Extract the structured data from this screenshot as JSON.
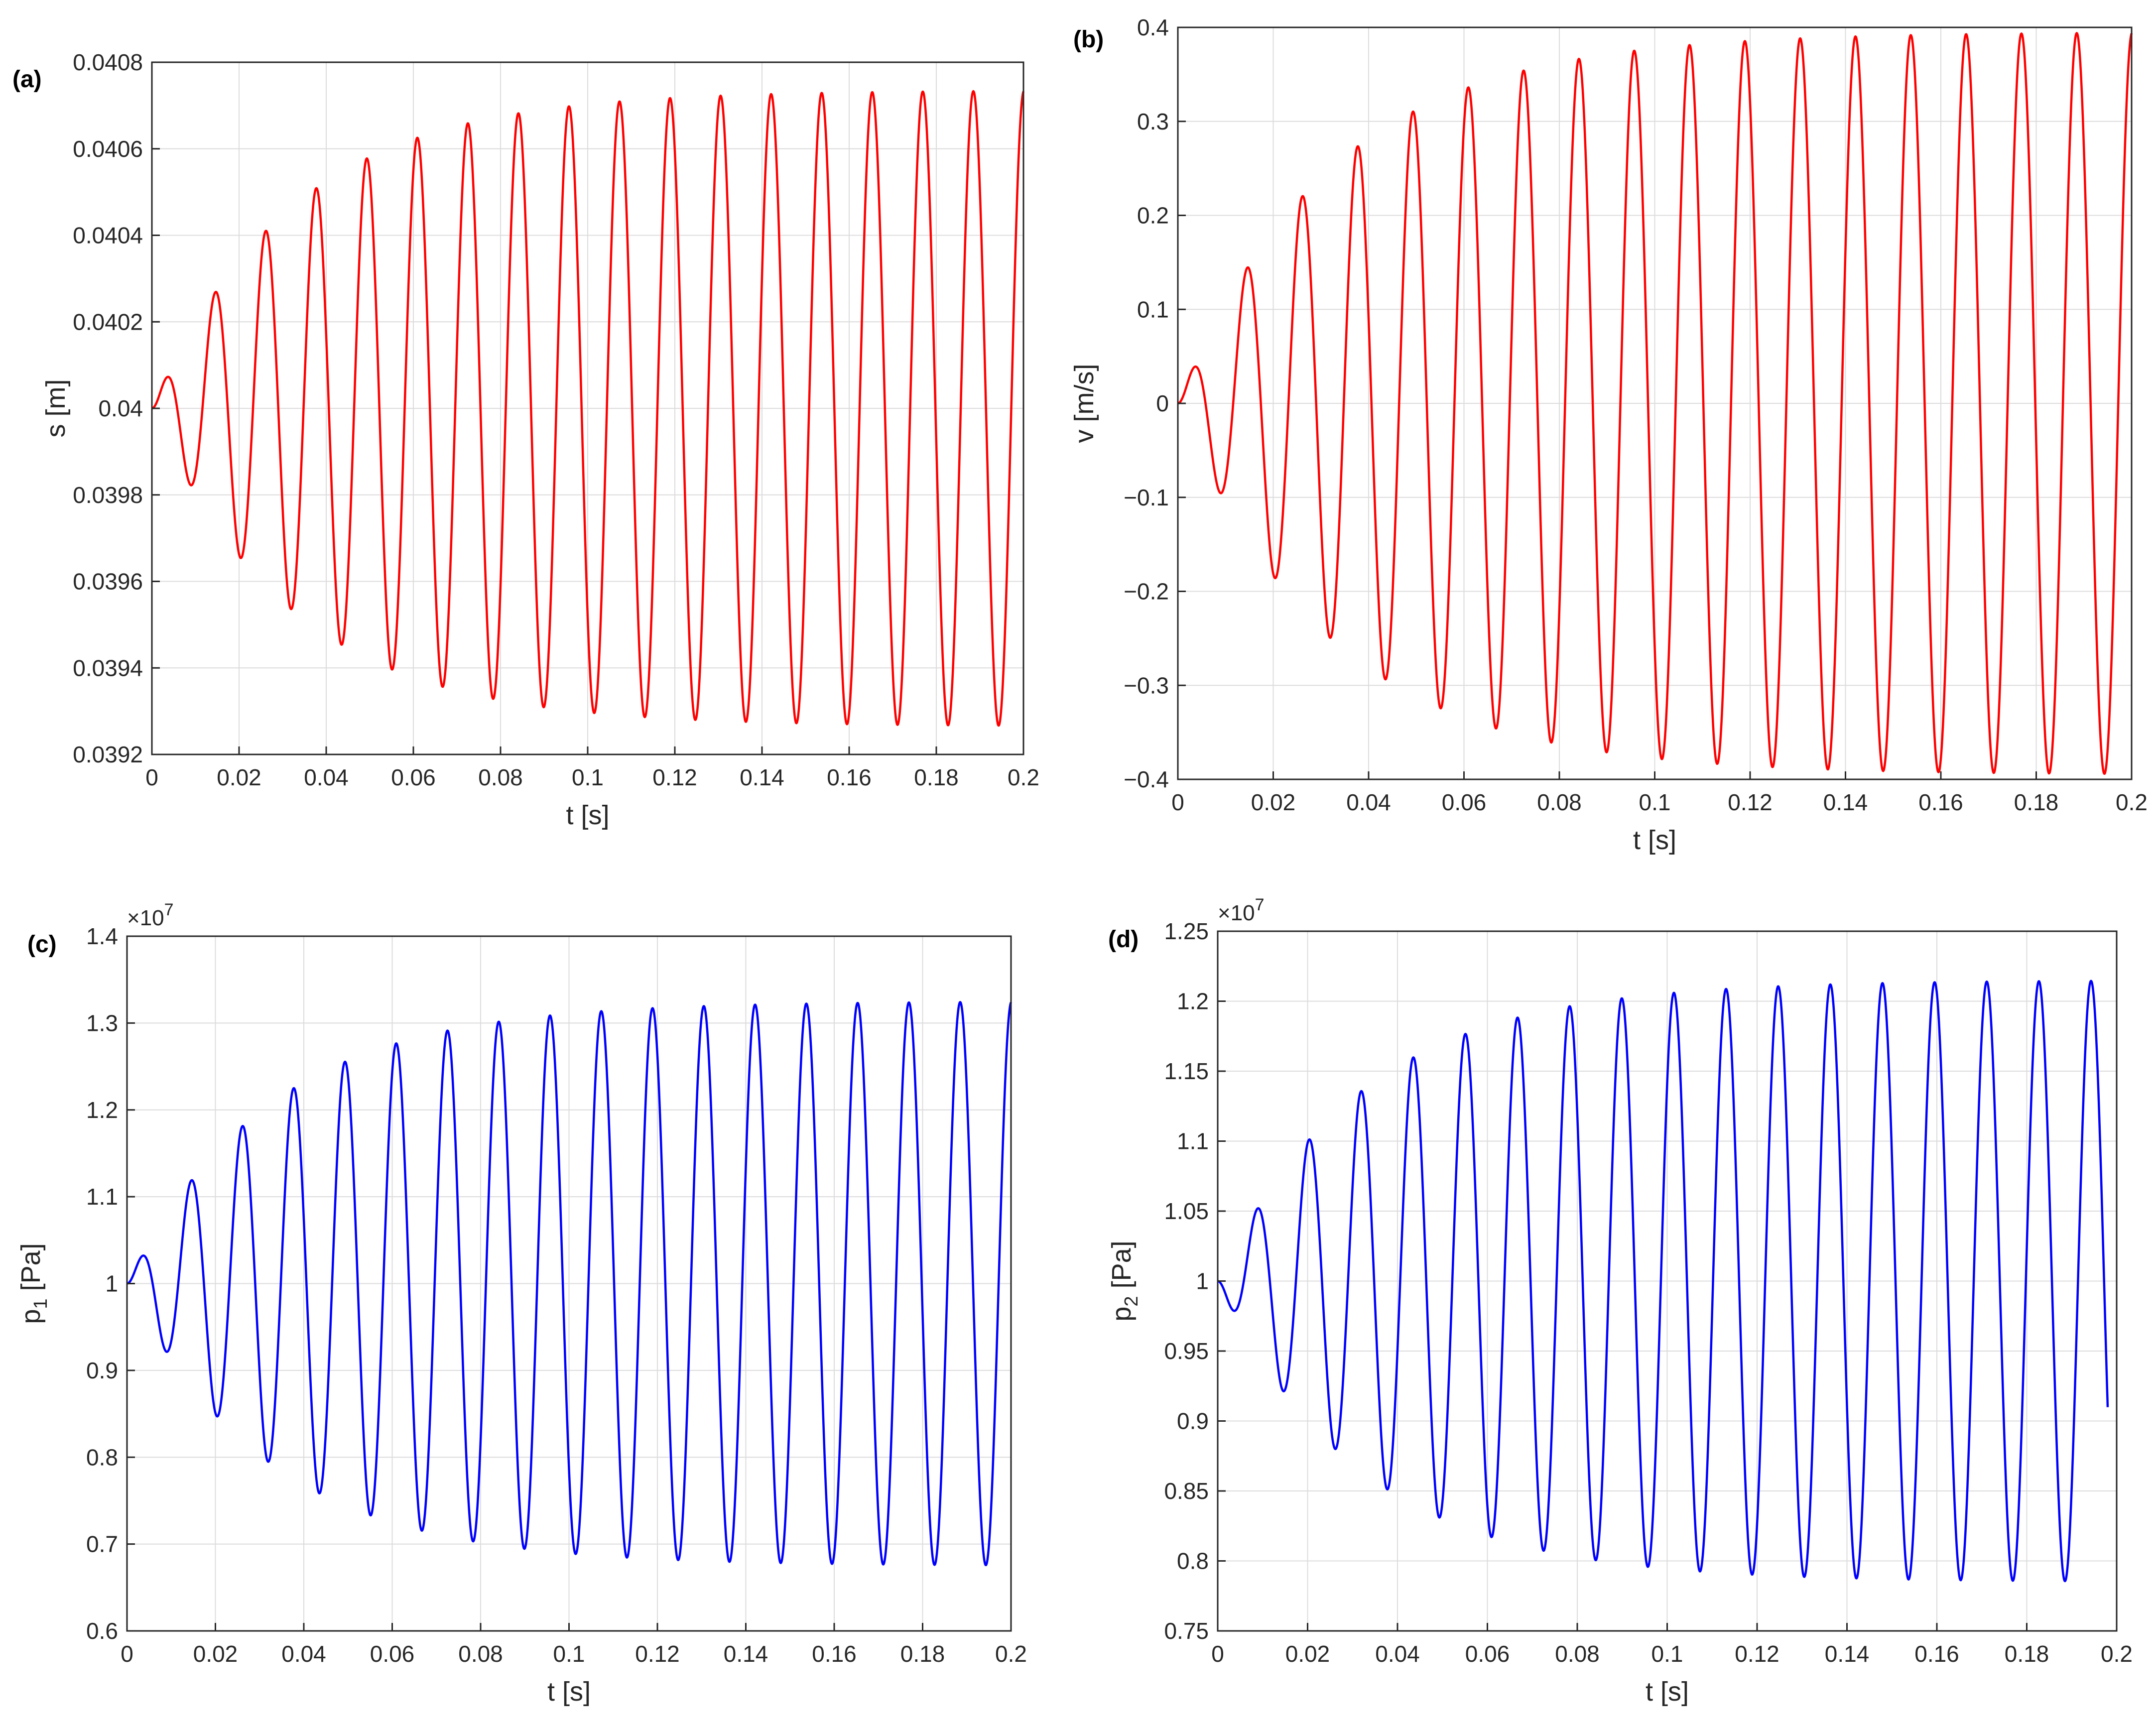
{
  "chart_data": [
    {
      "type": "line",
      "panel": "(a)",
      "xlabel": "t [s]",
      "ylabel": "s [m]",
      "ylabel_sub": "",
      "exponent": "",
      "color": "#ff0000",
      "xlim": [
        0,
        0.2
      ],
      "ylim": [
        0.0392,
        0.0408
      ],
      "xticks": [
        0,
        0.02,
        0.04,
        0.06,
        0.08,
        0.1,
        0.12,
        0.14,
        0.16,
        0.18,
        0.2
      ],
      "xtick_labels": [
        "0",
        "0.02",
        "0.04",
        "0.06",
        "0.08",
        "0.1",
        "0.12",
        "0.14",
        "0.16",
        "0.18",
        "0.2"
      ],
      "yticks": [
        0.0392,
        0.0394,
        0.0396,
        0.0398,
        0.04,
        0.0402,
        0.0404,
        0.0406,
        0.0408
      ],
      "ytick_labels": [
        "0.0392",
        "0.0394",
        "0.0396",
        "0.0398",
        "0.04",
        "0.0402",
        "0.0404",
        "0.0406",
        "0.0408"
      ],
      "series": [
        {
          "name": "s",
          "phase": "sin",
          "baseline": 0.04,
          "period": 0.0116,
          "peak_amplitude": 0.000735,
          "time_constant": 0.032,
          "end_time": 0.2
        }
      ]
    },
    {
      "type": "line",
      "panel": "(b)",
      "xlabel": "t [s]",
      "ylabel": "v [m/s]",
      "ylabel_sub": "",
      "exponent": "",
      "color": "#ff0000",
      "xlim": [
        0,
        0.2
      ],
      "ylim": [
        -0.4,
        0.4
      ],
      "xticks": [
        0,
        0.02,
        0.04,
        0.06,
        0.08,
        0.1,
        0.12,
        0.14,
        0.16,
        0.18,
        0.2
      ],
      "xtick_labels": [
        "0",
        "0.02",
        "0.04",
        "0.06",
        "0.08",
        "0.1",
        "0.12",
        "0.14",
        "0.16",
        "0.18",
        "0.2"
      ],
      "yticks": [
        -0.4,
        -0.3,
        -0.2,
        -0.1,
        0,
        0.1,
        0.2,
        0.3,
        0.4
      ],
      "ytick_labels": [
        "−0.4",
        "−0.3",
        "−0.2",
        "−0.1",
        "0",
        "0.1",
        "0.2",
        "0.3",
        "0.4"
      ],
      "series": [
        {
          "name": "v",
          "phase": "sin",
          "baseline": 0,
          "period": 0.0116,
          "peak_amplitude": 0.395,
          "time_constant": 0.032,
          "end_time": 0.2
        }
      ]
    },
    {
      "type": "line",
      "panel": "(c)",
      "xlabel": "t [s]",
      "ylabel": "p",
      "ylabel_sub": "1",
      "ylabel_unit": " [Pa]",
      "exponent": "×10",
      "exponent_power": "7",
      "color": "#0000ff",
      "xlim": [
        0,
        0.2
      ],
      "ylim": [
        0.6,
        1.4
      ],
      "xticks": [
        0,
        0.02,
        0.04,
        0.06,
        0.08,
        0.1,
        0.12,
        0.14,
        0.16,
        0.18,
        0.2
      ],
      "xtick_labels": [
        "0",
        "0.02",
        "0.04",
        "0.06",
        "0.08",
        "0.1",
        "0.12",
        "0.14",
        "0.16",
        "0.18",
        "0.2"
      ],
      "yticks": [
        0.6,
        0.7,
        0.8,
        0.9,
        1.0,
        1.1,
        1.2,
        1.3,
        1.4
      ],
      "ytick_labels": [
        "0.6",
        "0.7",
        "0.8",
        "0.9",
        "1",
        "1.1",
        "1.2",
        "1.3",
        "1.4"
      ],
      "series": [
        {
          "name": "p1",
          "phase": "sin",
          "baseline": 1.0,
          "period": 0.0116,
          "peak_amplitude": 0.325,
          "time_constant": 0.032,
          "end_time": 0.2
        }
      ]
    },
    {
      "type": "line",
      "panel": "(d)",
      "xlabel": "t [s]",
      "ylabel": "p",
      "ylabel_sub": "2",
      "ylabel_unit": " [Pa]",
      "exponent": "×10",
      "exponent_power": "7",
      "color": "#0000ff",
      "xlim": [
        0,
        0.2
      ],
      "ylim": [
        0.75,
        1.25
      ],
      "xticks": [
        0,
        0.02,
        0.04,
        0.06,
        0.08,
        0.1,
        0.12,
        0.14,
        0.16,
        0.18,
        0.2
      ],
      "xtick_labels": [
        "0",
        "0.02",
        "0.04",
        "0.06",
        "0.08",
        "0.1",
        "0.12",
        "0.14",
        "0.16",
        "0.18",
        "0.2"
      ],
      "yticks": [
        0.75,
        0.8,
        0.85,
        0.9,
        0.95,
        1.0,
        1.05,
        1.1,
        1.15,
        1.2,
        1.25
      ],
      "ytick_labels": [
        "0.75",
        "0.8",
        "0.85",
        "0.9",
        "0.95",
        "1",
        "1.05",
        "1.1",
        "1.15",
        "1.2",
        "1.25"
      ],
      "series": [
        {
          "name": "p2",
          "phase": "negsin",
          "baseline": 1.0,
          "period": 0.0116,
          "peak_amplitude": 0.215,
          "time_constant": 0.032,
          "end_time": 0.198
        }
      ]
    }
  ]
}
